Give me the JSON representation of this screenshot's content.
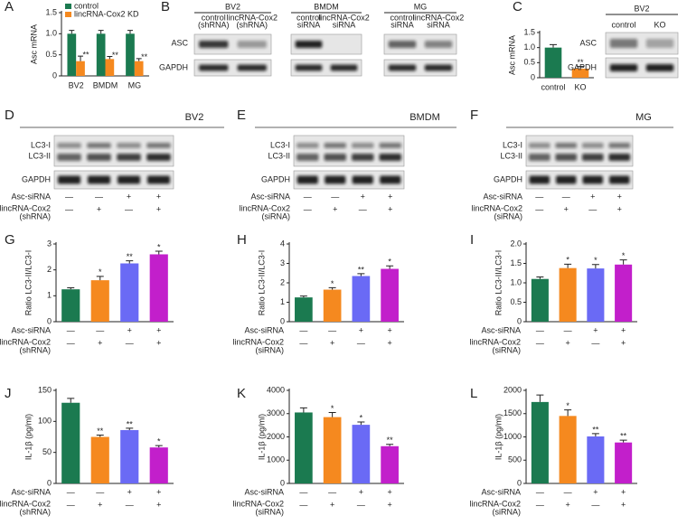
{
  "chart_data": [
    {
      "type": "grouped_bar",
      "label": "A",
      "ylabel": "Asc mRNA",
      "categories": [
        "BV2",
        "BMDM",
        "MG"
      ],
      "series": [
        {
          "name": "control",
          "color": "#1b7a50",
          "values": [
            1,
            1,
            1
          ],
          "errors": [
            0.08,
            0.08,
            0.08
          ]
        },
        {
          "name": "lincRNA-Cox2 KD",
          "color": "#f5891f",
          "values": [
            0.35,
            0.4,
            0.35
          ],
          "errors": [
            0.12,
            0.06,
            0.06
          ],
          "annotations": [
            "**",
            "**",
            "**"
          ]
        }
      ],
      "ylim": [
        0,
        1.5
      ],
      "yticks": [
        0,
        0.5,
        {
          "value": 1,
          "label": "1.0"
        },
        1.5
      ]
    },
    {
      "type": "bar",
      "label": "C",
      "ylabel": "Asc mRNA",
      "categories": [
        "control",
        "KO"
      ],
      "values": [
        1,
        0.3
      ],
      "errors": [
        0.1,
        0.07
      ],
      "colors": [
        "#1b7a50",
        "#f5891f"
      ],
      "annotations": [
        null,
        "**"
      ],
      "ylim": [
        0,
        1.5
      ],
      "yticks": [
        0,
        0.5,
        {
          "value": 1,
          "label": "1.0"
        },
        1.5
      ]
    },
    {
      "type": "bar",
      "label": "G",
      "ylabel": "Ratio LC3-II/LC3-I",
      "values": [
        1.25,
        1.6,
        2.25,
        2.6
      ],
      "errors": [
        0.06,
        0.15,
        0.1,
        0.12
      ],
      "colors": [
        "#1b7a50",
        "#f5891f",
        "#6a6af5",
        "#c21fcb"
      ],
      "annotations": [
        null,
        "*",
        "**",
        "*"
      ],
      "ylim": [
        0,
        3
      ],
      "yticks": [
        0,
        1,
        2,
        3
      ],
      "conditions": [
        {
          "label": [
            "Asc-siRNA"
          ],
          "signs": [
            "—",
            "—",
            "+",
            "+"
          ]
        },
        {
          "label": [
            "lincRNA-Cox2",
            "(shRNA)"
          ],
          "signs": [
            "—",
            "+",
            "—",
            "+"
          ]
        }
      ]
    },
    {
      "type": "bar",
      "label": "H",
      "ylabel": "Ratio LC3-II/LC3-I",
      "values": [
        1.25,
        1.65,
        2.35,
        2.72
      ],
      "errors": [
        0.07,
        0.1,
        0.12,
        0.15
      ],
      "colors": [
        "#1b7a50",
        "#f5891f",
        "#6a6af5",
        "#c21fcb"
      ],
      "annotations": [
        null,
        "*",
        "**",
        "*"
      ],
      "ylim": [
        0,
        4
      ],
      "yticks": [
        0,
        1,
        2,
        3,
        4
      ],
      "conditions": [
        {
          "label": [
            "Asc-siRNA"
          ],
          "signs": [
            "—",
            "—",
            "+",
            "+"
          ]
        },
        {
          "label": [
            "lincRNA-Cox2",
            "(siRNA)"
          ],
          "signs": [
            "—",
            "+",
            "—",
            "+"
          ]
        }
      ]
    },
    {
      "type": "bar",
      "label": "I",
      "ylabel": "Ratio LC3-II/LC3-I",
      "values": [
        1.1,
        1.38,
        1.37,
        1.47
      ],
      "errors": [
        0.05,
        0.1,
        0.1,
        0.12
      ],
      "colors": [
        "#1b7a50",
        "#f5891f",
        "#6a6af5",
        "#c21fcb"
      ],
      "annotations": [
        null,
        "*",
        "*",
        "*"
      ],
      "ylim": [
        0,
        2
      ],
      "yticks": [
        0,
        0.5,
        {
          "value": 1,
          "label": "1.0"
        },
        1.5,
        {
          "value": 2,
          "label": "2.0"
        }
      ],
      "conditions": [
        {
          "label": [
            "Asc-siRNA"
          ],
          "signs": [
            "—",
            "—",
            "+",
            "+"
          ]
        },
        {
          "label": [
            "lincRNA-Cox2",
            "(siRNA)"
          ],
          "signs": [
            "—",
            "+",
            "—",
            "+"
          ]
        }
      ]
    },
    {
      "type": "bar",
      "label": "J",
      "ylabel": "IL-1β (pg/ml)",
      "values": [
        130,
        75,
        86,
        58
      ],
      "errors": [
        7,
        3,
        3,
        3
      ],
      "colors": [
        "#1b7a50",
        "#f5891f",
        "#6a6af5",
        "#c21fcb"
      ],
      "annotations": [
        null,
        "**",
        "**",
        "*"
      ],
      "ylim": [
        0,
        150
      ],
      "yticks": [
        0,
        50,
        100,
        150
      ],
      "conditions": [
        {
          "label": [
            "Asc-siRNA"
          ],
          "signs": [
            "—",
            "—",
            "+",
            "+"
          ]
        },
        {
          "label": [
            "lincRNA-Cox2",
            "(shRNA)"
          ],
          "signs": [
            "—",
            "+",
            "—",
            "+"
          ]
        }
      ]
    },
    {
      "type": "bar",
      "label": "K",
      "ylabel": "IL-1β (pg/ml)",
      "values": [
        3050,
        2850,
        2520,
        1600
      ],
      "errors": [
        200,
        200,
        120,
        80
      ],
      "colors": [
        "#1b7a50",
        "#f5891f",
        "#6a6af5",
        "#c21fcb"
      ],
      "annotations": [
        null,
        "*",
        "*",
        "**"
      ],
      "ylim": [
        0,
        4000
      ],
      "yticks": [
        0,
        1000,
        2000,
        3000,
        4000
      ],
      "conditions": [
        {
          "label": [
            "Asc-siRNA"
          ],
          "signs": [
            "—",
            "—",
            "+",
            "+"
          ]
        },
        {
          "label": [
            "lincRNA-Cox2",
            "(siRNA)"
          ],
          "signs": [
            "—",
            "+",
            "—",
            "+"
          ]
        }
      ]
    },
    {
      "type": "bar",
      "label": "L",
      "ylabel": "IL-1β (pg/ml)",
      "values": [
        1750,
        1450,
        1010,
        880
      ],
      "errors": [
        150,
        130,
        60,
        50
      ],
      "colors": [
        "#1b7a50",
        "#f5891f",
        "#6a6af5",
        "#c21fcb"
      ],
      "annotations": [
        null,
        "*",
        "**",
        "**"
      ],
      "ylim": [
        0,
        2000
      ],
      "yticks": [
        0,
        500,
        1000,
        1500,
        2000
      ],
      "conditions": [
        {
          "label": [
            "Asc-siRNA"
          ],
          "signs": [
            "—",
            "—",
            "+",
            "+"
          ]
        },
        {
          "label": [
            "lincRNA-Cox2",
            "(siRNA)"
          ],
          "signs": [
            "—",
            "+",
            "—",
            "+"
          ]
        }
      ]
    }
  ],
  "blots": {
    "B": {
      "label": "B",
      "rows": [
        "ASC",
        "GAPDH"
      ],
      "groups": [
        {
          "title": "BV2",
          "columns": [
            [
              "control",
              "(shRNA)"
            ],
            [
              "lincRNA-Cox2",
              "(shRNA)"
            ]
          ]
        },
        {
          "title": "BMDM",
          "columns": [
            [
              "control",
              "siRNA"
            ],
            [
              "lincRNA-Cox2",
              "siRNA"
            ]
          ]
        },
        {
          "title": "MG",
          "columns": [
            [
              "control",
              "siRNA"
            ],
            [
              "lincRNA-Cox2",
              "siRNA"
            ]
          ]
        }
      ]
    },
    "C": {
      "title": "BV2",
      "rows": [
        "ASC",
        "GAPDH"
      ],
      "columns": [
        [
          "control"
        ],
        [
          "KO"
        ]
      ]
    },
    "D": {
      "label": "D",
      "title": "BV2",
      "rows": [
        [
          "LC3-I",
          "LC3-II"
        ],
        [
          "GAPDH"
        ]
      ],
      "conditions": [
        {
          "label": [
            "Asc-siRNA"
          ],
          "signs": [
            "—",
            "—",
            "+",
            "+"
          ]
        },
        {
          "label": [
            "lincRNA-Cox2",
            "(shRNA)"
          ],
          "signs": [
            "—",
            "+",
            "—",
            "+"
          ]
        }
      ]
    },
    "E": {
      "label": "E",
      "title": "BMDM",
      "rows": [
        [
          "LC3-I",
          "LC3-II"
        ],
        [
          "GAPDH"
        ]
      ],
      "conditions": [
        {
          "label": [
            "Asc-siRNA"
          ],
          "signs": [
            "—",
            "—",
            "+",
            "+"
          ]
        },
        {
          "label": [
            "lincRNA-Cox2",
            "(siRNA)"
          ],
          "signs": [
            "—",
            "+",
            "—",
            "+"
          ]
        }
      ]
    },
    "F": {
      "label": "F",
      "title": "MG",
      "rows": [
        [
          "LC3-I",
          "LC3-II"
        ],
        [
          "GAPDH"
        ]
      ],
      "conditions": [
        {
          "label": [
            "Asc-siRNA"
          ],
          "signs": [
            "—",
            "—",
            "+",
            "+"
          ]
        },
        {
          "label": [
            "lincRNA-Cox2",
            "(siRNA)"
          ],
          "signs": [
            "—",
            "+",
            "—",
            "+"
          ]
        }
      ]
    }
  }
}
